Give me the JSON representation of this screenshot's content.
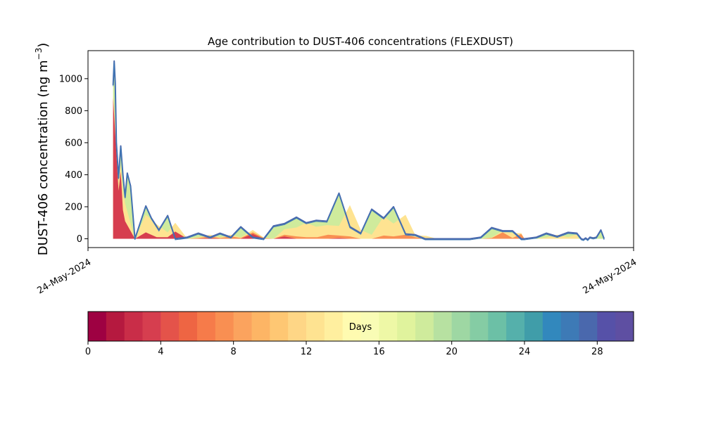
{
  "chart_data": {
    "type": "area",
    "title": "Age contribution to DUST-406 concentrations (FLEXDUST)",
    "ylabel_main": "DUST-406 concentration (ng m",
    "ylabel_sup": "−3",
    "ylabel_close": ")",
    "xlabel": "",
    "x_tick_labels": [
      "24-May-2024",
      "24-May-2024"
    ],
    "y_ticks": [
      0,
      200,
      400,
      600,
      800,
      1000
    ],
    "ylim": [
      -55,
      1175
    ],
    "xlim": [
      0,
      100
    ],
    "grid": false,
    "colorbar": {
      "label": "Days",
      "ticks": [
        0,
        4,
        8,
        12,
        16,
        20,
        24,
        28
      ],
      "range": [
        0,
        30
      ],
      "colors": [
        "#9e0142",
        "#b5193f",
        "#c92d48",
        "#d63e4f",
        "#e4534a",
        "#ee6543",
        "#f67b4a",
        "#f98f52",
        "#fba35e",
        "#fdb565",
        "#fec773",
        "#fed686",
        "#fee391",
        "#ffef9f",
        "#fffbb0",
        "#f9fcb5",
        "#eef8a6",
        "#e0f39d",
        "#cfeb9c",
        "#b7e1a1",
        "#9ed7a3",
        "#85cca4",
        "#6cc0a6",
        "#55b0ab",
        "#409da9",
        "#3288bd",
        "#3d7ab6",
        "#4a68ad",
        "#5651a8",
        "#5e4fa2"
      ]
    },
    "total_series": {
      "x": [
        4.6,
        4.8,
        5.0,
        5.2,
        5.6,
        6.0,
        6.4,
        6.8,
        7.2,
        7.8,
        8.6,
        10.6,
        11.6,
        13.0,
        14.6,
        16.0,
        18.2,
        20.2,
        22.4,
        24.2,
        26.2,
        28.0,
        30.2,
        32.2,
        34.0,
        36.0,
        38.2,
        40.0,
        41.8,
        43.8,
        46.0,
        48.0,
        50.0,
        52.0,
        54.2,
        56.0,
        58.2,
        60.0,
        61.8,
        64.0,
        66.0,
        68.0,
        70.0,
        72.0,
        74.0,
        76.0,
        77.8,
        79.4,
        80.0,
        82.2,
        84.0,
        86.0,
        88.0,
        89.6,
        90.4,
        90.8,
        91.2,
        91.6,
        92.0,
        92.6,
        93.2,
        94.0,
        94.6
      ],
      "values": [
        960,
        1110,
        970,
        600,
        380,
        580,
        400,
        260,
        410,
        330,
        0,
        205,
        130,
        55,
        145,
        0,
        10,
        35,
        10,
        35,
        10,
        75,
        10,
        0,
        80,
        95,
        135,
        100,
        115,
        110,
        285,
        75,
        35,
        185,
        130,
        200,
        30,
        25,
        0,
        0,
        0,
        0,
        0,
        10,
        70,
        50,
        50,
        0,
        0,
        10,
        35,
        15,
        40,
        35,
        0,
        -5,
        5,
        -5,
        10,
        5,
        10,
        55,
        0
      ]
    },
    "inner_series": {
      "x": [
        4.6,
        5.0,
        5.6,
        6.0,
        6.4,
        6.8,
        8.6,
        10.6,
        12.6,
        14.6,
        16.0,
        18.2,
        20.2,
        22.4,
        24.2,
        26.2,
        28.0,
        30.2,
        32.2,
        34.0,
        36.0,
        38.2,
        40.0,
        41.8,
        43.8,
        46.0,
        48.0,
        50.0,
        52.0,
        54.2,
        56.0,
        58.2,
        60.0,
        62.0,
        64.0,
        66.0,
        68.0,
        70.0,
        72.0,
        74.0,
        76.0,
        77.8,
        79.4,
        80.0,
        82.2,
        84.0,
        86.0,
        88.0,
        89.6,
        90.0
      ],
      "values": [
        900,
        720,
        360,
        460,
        300,
        220,
        0,
        150,
        90,
        40,
        100,
        0,
        8,
        25,
        8,
        25,
        8,
        55,
        8,
        0,
        60,
        70,
        100,
        75,
        85,
        80,
        210,
        55,
        25,
        140,
        95,
        150,
        22,
        18,
        0,
        0,
        0,
        0,
        0,
        8,
        50,
        35,
        35,
        0,
        0,
        8,
        25,
        10,
        28,
        0
      ]
    },
    "red_series": {
      "x": [
        4.6,
        5.0,
        5.6,
        6.0,
        6.4,
        6.8,
        8.6,
        10.6,
        12.6,
        14.6,
        16.0,
        18.2,
        20.2,
        22.4,
        24.2,
        26.2,
        28.0,
        30.2,
        32.2,
        34.0,
        36.0,
        38.2,
        40.0,
        42.0,
        44.0,
        46.0,
        48.0,
        50.0,
        52.0,
        54.2,
        56.0,
        58.2,
        60.0,
        62.0,
        64.0,
        66.0,
        68.0,
        70.0,
        72.0,
        74.0,
        76.0,
        77.8,
        79.4,
        80.0,
        82.2,
        84.0
      ],
      "values": [
        880,
        650,
        300,
        420,
        180,
        110,
        0,
        40,
        10,
        10,
        45,
        0,
        0,
        5,
        0,
        0,
        0,
        30,
        0,
        0,
        15,
        0,
        0,
        0,
        0,
        5,
        0,
        0,
        0,
        0,
        0,
        0,
        0,
        0,
        0,
        0,
        0,
        0,
        0,
        0,
        0,
        0,
        0,
        0,
        0,
        0
      ]
    },
    "orange_series": {
      "x": [
        8.6,
        10.6,
        12.6,
        14.6,
        16.0,
        18.2,
        20.2,
        22.4,
        24.2,
        26.2,
        28.0,
        30.2,
        32.2,
        34.0,
        36.0,
        38.2,
        40.0,
        42.0,
        44.0,
        46.0,
        48.0,
        50.0,
        52.0,
        54.2,
        56.0,
        58.2,
        60.0,
        62.0,
        64.0,
        66.0,
        68.0,
        70.0,
        72.0,
        74.0,
        76.0,
        77.8,
        79.4,
        80.0
      ],
      "values": [
        0,
        15,
        10,
        5,
        20,
        0,
        5,
        15,
        5,
        15,
        5,
        40,
        5,
        0,
        25,
        15,
        10,
        10,
        25,
        20,
        15,
        0,
        0,
        20,
        15,
        25,
        10,
        0,
        0,
        0,
        0,
        0,
        0,
        5,
        40,
        5,
        30,
        0
      ]
    }
  }
}
